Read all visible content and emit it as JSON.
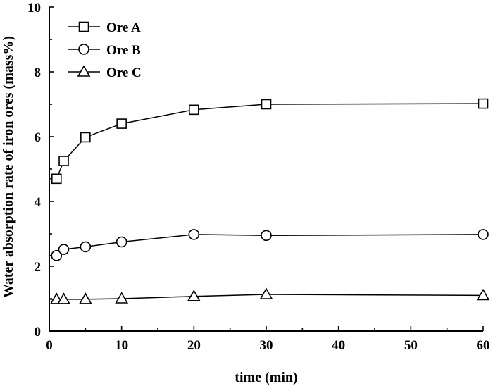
{
  "chart_data": {
    "type": "line",
    "title": "",
    "xlabel": "time (min)",
    "ylabel": "Water absorption rate of iron ores (mass%)",
    "xlim": [
      0,
      60
    ],
    "ylim": [
      0,
      10
    ],
    "xticks": [
      0,
      10,
      20,
      30,
      40,
      50,
      60
    ],
    "yticks": [
      0,
      2,
      4,
      6,
      8,
      10
    ],
    "grid": false,
    "legend_position": "top-left",
    "series": [
      {
        "name": "Ore A",
        "marker": "square",
        "x": [
          1,
          2,
          5,
          10,
          20,
          30,
          60
        ],
        "y": [
          4.7,
          5.25,
          5.98,
          6.4,
          6.83,
          7.0,
          7.02
        ]
      },
      {
        "name": "Ore B",
        "marker": "circle",
        "x": [
          1,
          2,
          5,
          10,
          20,
          30,
          60
        ],
        "y": [
          2.33,
          2.52,
          2.6,
          2.75,
          2.98,
          2.95,
          2.98
        ]
      },
      {
        "name": "Ore C",
        "marker": "triangle",
        "x": [
          1,
          2,
          5,
          10,
          20,
          30,
          60
        ],
        "y": [
          0.98,
          0.98,
          0.98,
          1.0,
          1.07,
          1.13,
          1.1
        ]
      }
    ]
  }
}
